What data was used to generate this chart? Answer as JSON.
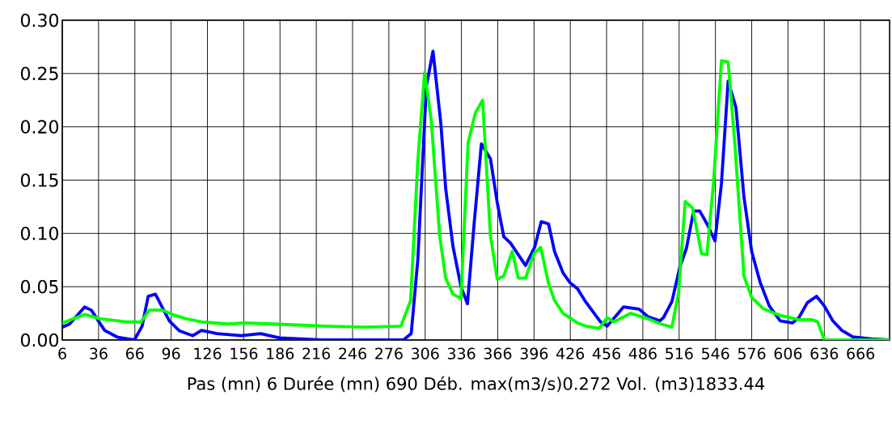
{
  "chart_data": {
    "type": "line",
    "xlabel": "Pas (mn) 6 Durée (mn) 690 Déb. max(m3/s)0.272 Vol. (m3)1833.44",
    "xlim": [
      6,
      690
    ],
    "ylim": [
      0,
      0.3
    ],
    "xticks": [
      6,
      36,
      66,
      96,
      126,
      156,
      186,
      216,
      246,
      276,
      306,
      336,
      366,
      396,
      426,
      456,
      486,
      516,
      546,
      576,
      606,
      636,
      666
    ],
    "yticks": [
      {
        "value": 0,
        "label": "0.00"
      },
      {
        "value": 0.05,
        "label": "0.05"
      },
      {
        "value": 0.1,
        "label": "0.10"
      },
      {
        "value": 0.15,
        "label": "0.15"
      },
      {
        "value": 0.2,
        "label": "0.20"
      },
      {
        "value": 0.25,
        "label": "0.25"
      },
      {
        "value": 0.3,
        "label": "0.30"
      }
    ],
    "grid": true,
    "marker": "none",
    "line_style": "solid",
    "series": [
      {
        "color": "#0000ff",
        "x": [
          6,
          12,
          24.5,
          30,
          41,
          52,
          65.6,
          72,
          77,
          83,
          94.5,
          103,
          114,
          121,
          134,
          154,
          170,
          185.6,
          221,
          288,
          294.5,
          300,
          307,
          312.5,
          319,
          323,
          329,
          335.6,
          341,
          346.5,
          352.5,
          360,
          365.6,
          371,
          376.5,
          389,
          396.5,
          402,
          408,
          413,
          420,
          425.6,
          432,
          438,
          451,
          456.5,
          470,
          483,
          490,
          500,
          503,
          510,
          516.5,
          522,
          528,
          533,
          539,
          545.6,
          551,
          556.5,
          563,
          569.6,
          576,
          583,
          590.5,
          599.6,
          609.6,
          615,
          622,
          629.6,
          636,
          643,
          650.5,
          659.6,
          675,
          690
        ],
        "values": [
          0.012,
          0.015,
          0.031,
          0.028,
          0.009,
          0.0025,
          0,
          0.013,
          0.041,
          0.043,
          0.018,
          0.0085,
          0.004,
          0.009,
          0.006,
          0.004,
          0.006,
          0.002,
          0,
          0,
          0.006,
          0.076,
          0.238,
          0.271,
          0.203,
          0.142,
          0.088,
          0.05,
          0.034,
          0.109,
          0.184,
          0.17,
          0.129,
          0.097,
          0.091,
          0.07,
          0.087,
          0.111,
          0.109,
          0.083,
          0.063,
          0.054,
          0.048,
          0.037,
          0.017,
          0.013,
          0.031,
          0.029,
          0.022,
          0.018,
          0.021,
          0.036,
          0.068,
          0.086,
          0.121,
          0.121,
          0.109,
          0.093,
          0.147,
          0.243,
          0.218,
          0.134,
          0.083,
          0.054,
          0.032,
          0.018,
          0.016,
          0.021,
          0.035,
          0.041,
          0.032,
          0.018,
          0.009,
          0.003,
          0.001,
          0
        ]
      },
      {
        "color": "#00ff00",
        "x": [
          6,
          24.5,
          36.7,
          59,
          71,
          78,
          89,
          96.7,
          108,
          121,
          143,
          156.7,
          181,
          223,
          257,
          286,
          294,
          300,
          305.6,
          311,
          318,
          323,
          329,
          335.6,
          341.5,
          347.5,
          353.5,
          360,
          365.6,
          371,
          378,
          383,
          389,
          396,
          401.5,
          408,
          413,
          420,
          432,
          439,
          450,
          456.5,
          462,
          476,
          490,
          501,
          510,
          515.6,
          521,
          527,
          534.5,
          539,
          544.5,
          551,
          556.5,
          562,
          569.6,
          576,
          586,
          599.6,
          615,
          626,
          630.6,
          636,
          690
        ],
        "values": [
          0.016,
          0.024,
          0.02,
          0.017,
          0.017,
          0.028,
          0.028,
          0.024,
          0.02,
          0.017,
          0.015,
          0.016,
          0.015,
          0.013,
          0.012,
          0.013,
          0.037,
          0.169,
          0.251,
          0.207,
          0.098,
          0.058,
          0.043,
          0.039,
          0.185,
          0.213,
          0.225,
          0.098,
          0.057,
          0.06,
          0.083,
          0.058,
          0.058,
          0.081,
          0.087,
          0.053,
          0.037,
          0.025,
          0.016,
          0.013,
          0.011,
          0.021,
          0.017,
          0.025,
          0.02,
          0.015,
          0.012,
          0.045,
          0.13,
          0.124,
          0.081,
          0.08,
          0.149,
          0.262,
          0.261,
          0.185,
          0.06,
          0.04,
          0.029,
          0.023,
          0.019,
          0.019,
          0.017,
          0,
          0
        ]
      }
    ]
  }
}
